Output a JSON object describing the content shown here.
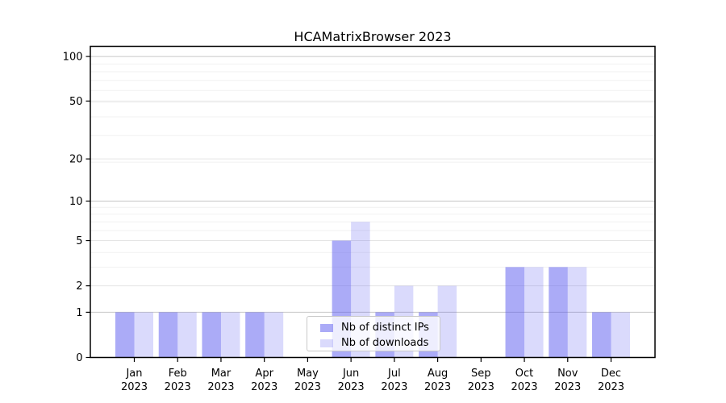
{
  "title": "HCAMatrixBrowser 2023",
  "chart_data": {
    "type": "bar",
    "title": "HCAMatrixBrowser 2023",
    "categories": [
      "Jan 2023",
      "Feb 2023",
      "Mar 2023",
      "Apr 2023",
      "May 2023",
      "Jun 2023",
      "Jul 2023",
      "Aug 2023",
      "Sep 2023",
      "Oct 2023",
      "Nov 2023",
      "Dec 2023"
    ],
    "series": [
      {
        "name": "Nb of distinct IPs",
        "values": [
          1,
          1,
          1,
          1,
          0,
          5,
          1,
          1,
          0,
          3,
          3,
          1
        ],
        "color": "rgba(87,87,240,0.50)"
      },
      {
        "name": "Nb of downloads",
        "values": [
          1,
          1,
          1,
          1,
          0,
          7,
          2,
          2,
          0,
          3,
          3,
          1
        ],
        "color": "rgba(87,87,240,0.22)"
      }
    ],
    "xlabel": "",
    "ylabel": "",
    "yscale": "log1p",
    "y_ticks": [
      0,
      1,
      2,
      5,
      10,
      20,
      50,
      100
    ],
    "ylim": [
      0,
      117
    ],
    "grid": "on",
    "legend_position": "lower center"
  },
  "legend": {
    "items": [
      {
        "label": "Nb of distinct IPs"
      },
      {
        "label": "Nb of downloads"
      }
    ]
  },
  "colors": {
    "series1": "rgba(87,87,240,0.50)",
    "series2": "rgba(87,87,240,0.22)",
    "grid_strong": "#c6c6c6",
    "grid_medium": "#e4e4e4",
    "grid_minor": "#f1f1f1",
    "axis": "#000000",
    "text": "#000000"
  }
}
